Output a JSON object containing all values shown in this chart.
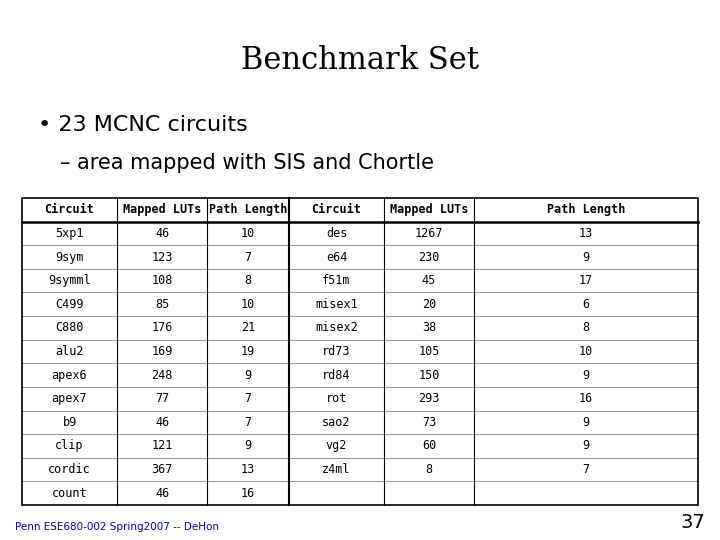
{
  "title": "Benchmark Set",
  "bullet1": "23 MCNC circuits",
  "bullet2": "area mapped with SIS and Chortle",
  "footer": "Penn ESE680-002 Spring2007 -- DeHon",
  "page_number": "37",
  "col_headers": [
    "Circuit",
    "Mapped LUTs",
    "Path Length"
  ],
  "left_data": [
    [
      "5xp1",
      "46",
      "10"
    ],
    [
      "9sym",
      "123",
      "7"
    ],
    [
      "9symml",
      "108",
      "8"
    ],
    [
      "C499",
      "85",
      "10"
    ],
    [
      "C880",
      "176",
      "21"
    ],
    [
      "alu2",
      "169",
      "19"
    ],
    [
      "apex6",
      "248",
      "9"
    ],
    [
      "apex7",
      "77",
      "7"
    ],
    [
      "b9",
      "46",
      "7"
    ],
    [
      "clip",
      "121",
      "9"
    ],
    [
      "cordic",
      "367",
      "13"
    ],
    [
      "count",
      "46",
      "16"
    ]
  ],
  "right_data": [
    [
      "des",
      "1267",
      "13"
    ],
    [
      "e64",
      "230",
      "9"
    ],
    [
      "f51m",
      "45",
      "17"
    ],
    [
      "misex1",
      "20",
      "6"
    ],
    [
      "misex2",
      "38",
      "8"
    ],
    [
      "rd73",
      "105",
      "10"
    ],
    [
      "rd84",
      "150",
      "9"
    ],
    [
      "rot",
      "293",
      "16"
    ],
    [
      "sao2",
      "73",
      "9"
    ],
    [
      "vg2",
      "60",
      "9"
    ],
    [
      "z4ml",
      "8",
      "7"
    ]
  ],
  "background_color": "#ffffff",
  "text_color": "#000000",
  "table_line_color": "#000000",
  "title_fontsize": 22,
  "bullet_fontsize": 16,
  "sub_bullet_fontsize": 15,
  "table_header_fontsize": 8.5,
  "table_data_fontsize": 8.5,
  "footer_fontsize": 7.5,
  "footer_color": "#0000cc",
  "page_num_fontsize": 14
}
